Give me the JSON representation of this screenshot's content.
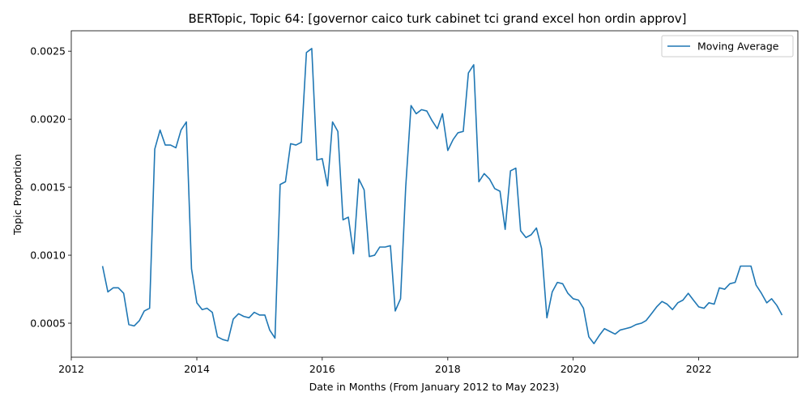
{
  "chart_data": {
    "type": "line",
    "title": "BERTopic, Topic 64: [governor caico turk cabinet tci grand excel hon ordin approv]",
    "xlabel": "Date in Months (From January 2012 to May 2023)",
    "ylabel": "Topic Proportion",
    "xlim": [
      "2012-01-01",
      "2023-08-01"
    ],
    "ylim": [
      0.00025,
      0.00265
    ],
    "xticks": [
      {
        "date": "2012-01-01",
        "label": "2012"
      },
      {
        "date": "2014-01-01",
        "label": "2014"
      },
      {
        "date": "2016-01-01",
        "label": "2016"
      },
      {
        "date": "2018-01-01",
        "label": "2018"
      },
      {
        "date": "2020-01-01",
        "label": "2020"
      },
      {
        "date": "2022-01-01",
        "label": "2022"
      }
    ],
    "yticks": [
      {
        "value": 0.0005,
        "label": "0.0005"
      },
      {
        "value": 0.001,
        "label": "0.0010"
      },
      {
        "value": 0.0015,
        "label": "0.0015"
      },
      {
        "value": 0.002,
        "label": "0.0020"
      },
      {
        "value": 0.0025,
        "label": "0.0025"
      }
    ],
    "grid": false,
    "legend_position": "top-right",
    "series": [
      {
        "name": "Moving Average",
        "color": "#1f77b4",
        "points": [
          [
            "2012-07-01",
            0.00092
          ],
          [
            "2012-08-01",
            0.00073
          ],
          [
            "2012-09-01",
            0.00076
          ],
          [
            "2012-10-01",
            0.00076
          ],
          [
            "2012-11-01",
            0.00072
          ],
          [
            "2012-12-01",
            0.00049
          ],
          [
            "2013-01-01",
            0.00048
          ],
          [
            "2013-02-01",
            0.00052
          ],
          [
            "2013-03-01",
            0.00059
          ],
          [
            "2013-04-01",
            0.00061
          ],
          [
            "2013-05-01",
            0.00178
          ],
          [
            "2013-06-01",
            0.00192
          ],
          [
            "2013-07-01",
            0.00181
          ],
          [
            "2013-08-01",
            0.00181
          ],
          [
            "2013-09-01",
            0.00179
          ],
          [
            "2013-10-01",
            0.00192
          ],
          [
            "2013-11-01",
            0.00198
          ],
          [
            "2013-12-01",
            0.0009
          ],
          [
            "2014-01-01",
            0.00065
          ],
          [
            "2014-02-01",
            0.0006
          ],
          [
            "2014-03-01",
            0.00061
          ],
          [
            "2014-04-01",
            0.00058
          ],
          [
            "2014-05-01",
            0.0004
          ],
          [
            "2014-06-01",
            0.00038
          ],
          [
            "2014-07-01",
            0.00037
          ],
          [
            "2014-08-01",
            0.00053
          ],
          [
            "2014-09-01",
            0.00057
          ],
          [
            "2014-10-01",
            0.00055
          ],
          [
            "2014-11-01",
            0.00054
          ],
          [
            "2014-12-01",
            0.00058
          ],
          [
            "2015-01-01",
            0.00056
          ],
          [
            "2015-02-01",
            0.00056
          ],
          [
            "2015-03-01",
            0.00045
          ],
          [
            "2015-04-01",
            0.00039
          ],
          [
            "2015-05-01",
            0.00152
          ],
          [
            "2015-06-01",
            0.00154
          ],
          [
            "2015-07-01",
            0.00182
          ],
          [
            "2015-08-01",
            0.00181
          ],
          [
            "2015-09-01",
            0.00183
          ],
          [
            "2015-10-01",
            0.00249
          ],
          [
            "2015-11-01",
            0.00252
          ],
          [
            "2015-12-01",
            0.0017
          ],
          [
            "2016-01-01",
            0.00171
          ],
          [
            "2016-02-01",
            0.00151
          ],
          [
            "2016-03-01",
            0.00198
          ],
          [
            "2016-04-01",
            0.00191
          ],
          [
            "2016-05-01",
            0.00126
          ],
          [
            "2016-06-01",
            0.00128
          ],
          [
            "2016-07-01",
            0.00101
          ],
          [
            "2016-08-01",
            0.00156
          ],
          [
            "2016-09-01",
            0.00148
          ],
          [
            "2016-10-01",
            0.00099
          ],
          [
            "2016-11-01",
            0.001
          ],
          [
            "2016-12-01",
            0.00106
          ],
          [
            "2017-01-01",
            0.00106
          ],
          [
            "2017-02-01",
            0.00107
          ],
          [
            "2017-03-01",
            0.00059
          ],
          [
            "2017-04-01",
            0.00068
          ],
          [
            "2017-05-01",
            0.0015
          ],
          [
            "2017-06-01",
            0.0021
          ],
          [
            "2017-07-01",
            0.00204
          ],
          [
            "2017-08-01",
            0.00207
          ],
          [
            "2017-09-01",
            0.00206
          ],
          [
            "2017-10-01",
            0.00199
          ],
          [
            "2017-11-01",
            0.00193
          ],
          [
            "2017-12-01",
            0.00204
          ],
          [
            "2018-01-01",
            0.00177
          ],
          [
            "2018-02-01",
            0.00185
          ],
          [
            "2018-03-01",
            0.0019
          ],
          [
            "2018-04-01",
            0.00191
          ],
          [
            "2018-05-01",
            0.00234
          ],
          [
            "2018-06-01",
            0.0024
          ],
          [
            "2018-07-01",
            0.00154
          ],
          [
            "2018-08-01",
            0.0016
          ],
          [
            "2018-09-01",
            0.00156
          ],
          [
            "2018-10-01",
            0.00149
          ],
          [
            "2018-11-01",
            0.00147
          ],
          [
            "2018-12-01",
            0.00119
          ],
          [
            "2019-01-01",
            0.00162
          ],
          [
            "2019-02-01",
            0.00164
          ],
          [
            "2019-03-01",
            0.00118
          ],
          [
            "2019-04-01",
            0.00113
          ],
          [
            "2019-05-01",
            0.00115
          ],
          [
            "2019-06-01",
            0.0012
          ],
          [
            "2019-07-01",
            0.00105
          ],
          [
            "2019-08-01",
            0.00054
          ],
          [
            "2019-09-01",
            0.00073
          ],
          [
            "2019-10-01",
            0.0008
          ],
          [
            "2019-11-01",
            0.00079
          ],
          [
            "2019-12-01",
            0.00072
          ],
          [
            "2020-01-01",
            0.00068
          ],
          [
            "2020-02-01",
            0.00067
          ],
          [
            "2020-03-01",
            0.00061
          ],
          [
            "2020-04-01",
            0.0004
          ],
          [
            "2020-05-01",
            0.00035
          ],
          [
            "2020-06-01",
            0.00041
          ],
          [
            "2020-07-01",
            0.00046
          ],
          [
            "2020-08-01",
            0.00044
          ],
          [
            "2020-09-01",
            0.00042
          ],
          [
            "2020-10-01",
            0.00045
          ],
          [
            "2020-11-01",
            0.00046
          ],
          [
            "2020-12-01",
            0.00047
          ],
          [
            "2021-01-01",
            0.00049
          ],
          [
            "2021-02-01",
            0.0005
          ],
          [
            "2021-03-01",
            0.00052
          ],
          [
            "2021-04-01",
            0.00057
          ],
          [
            "2021-05-01",
            0.00062
          ],
          [
            "2021-06-01",
            0.00066
          ],
          [
            "2021-07-01",
            0.00064
          ],
          [
            "2021-08-01",
            0.0006
          ],
          [
            "2021-09-01",
            0.00065
          ],
          [
            "2021-10-01",
            0.00067
          ],
          [
            "2021-11-01",
            0.00072
          ],
          [
            "2021-12-01",
            0.00067
          ],
          [
            "2022-01-01",
            0.00062
          ],
          [
            "2022-02-01",
            0.00061
          ],
          [
            "2022-03-01",
            0.00065
          ],
          [
            "2022-04-01",
            0.00064
          ],
          [
            "2022-05-01",
            0.00076
          ],
          [
            "2022-06-01",
            0.00075
          ],
          [
            "2022-07-01",
            0.00079
          ],
          [
            "2022-08-01",
            0.0008
          ],
          [
            "2022-09-01",
            0.00092
          ],
          [
            "2022-10-01",
            0.00092
          ],
          [
            "2022-11-01",
            0.00092
          ],
          [
            "2022-12-01",
            0.00078
          ],
          [
            "2023-01-01",
            0.00072
          ],
          [
            "2023-02-01",
            0.00065
          ],
          [
            "2023-03-01",
            0.00068
          ],
          [
            "2023-04-01",
            0.00063
          ],
          [
            "2023-05-01",
            0.00056
          ]
        ]
      }
    ]
  }
}
